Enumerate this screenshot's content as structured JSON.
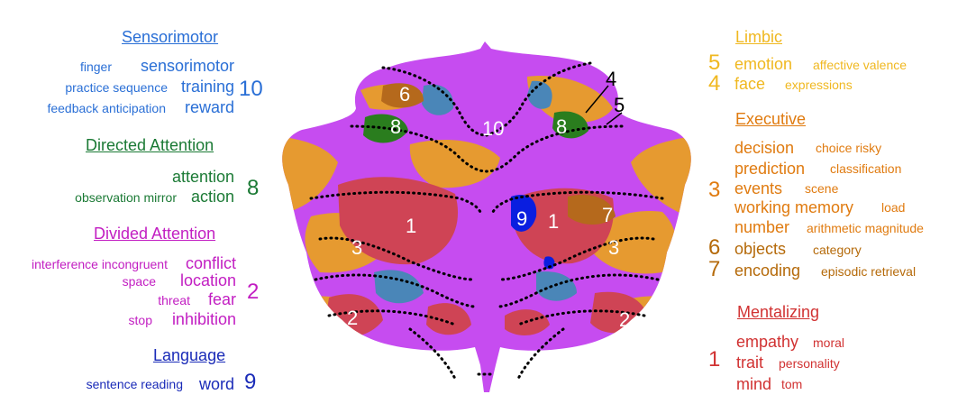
{
  "colors": {
    "sensorimotor": "#2a6fd6",
    "directed": "#1b7a35",
    "divided": "#c21ec2",
    "language": "#1a2bb8",
    "limbic": "#f0b820",
    "executive": "#e07b10",
    "executive_dark": "#b56a0a",
    "mentalizing": "#d13232",
    "map_purple": "#c64cf0",
    "map_orange": "#e69a30",
    "map_red": "#cf4455",
    "map_steel": "#4a86b8",
    "map_green": "#2a7d1e",
    "map_blue": "#0a1ee0",
    "map_brown": "#b5691c"
  },
  "left": {
    "sensorimotor": {
      "heading": "Sensorimotor",
      "number": "10",
      "rows": [
        {
          "small": "finger",
          "big": "sensorimotor"
        },
        {
          "small": "practice sequence",
          "big": "training"
        },
        {
          "small": "feedback anticipation",
          "big": "reward"
        }
      ]
    },
    "directed": {
      "heading": "Directed Attention",
      "number": "8",
      "rows": [
        {
          "small": "",
          "big": "attention"
        },
        {
          "small": "observation mirror",
          "big": "action"
        }
      ]
    },
    "divided": {
      "heading": "Divided Attention",
      "number": "2",
      "rows": [
        {
          "small": "interference incongruent",
          "big": "conflict"
        },
        {
          "small": "space",
          "big": "location"
        },
        {
          "small": "threat",
          "big": "fear"
        },
        {
          "small": "stop",
          "big": "inhibition"
        }
      ]
    },
    "language": {
      "heading": "Language",
      "number": "9",
      "rows": [
        {
          "small": "sentence reading",
          "big": "word"
        }
      ]
    }
  },
  "right": {
    "limbic": {
      "heading": "Limbic",
      "rows": [
        {
          "num": "5",
          "big": "emotion",
          "small": "affective valence"
        },
        {
          "num": "4",
          "big": "face",
          "small": "expressions"
        }
      ]
    },
    "executive": {
      "heading": "Executive",
      "number": "3",
      "rows": [
        {
          "num": "",
          "big": "decision",
          "small": "choice risky"
        },
        {
          "num": "",
          "big": "prediction",
          "small": "classification"
        },
        {
          "num": "",
          "big": "events",
          "small": "scene"
        },
        {
          "num": "",
          "big": "working memory",
          "small": "load"
        },
        {
          "num": "",
          "big": "number",
          "small": "arithmetic magnitude"
        },
        {
          "num": "6",
          "big": "objects",
          "small": "category"
        },
        {
          "num": "7",
          "big": "encoding",
          "small": "episodic retrieval"
        }
      ]
    },
    "mentalizing": {
      "heading": "Mentalizing",
      "number": "1",
      "rows": [
        {
          "big": "empathy",
          "small": "moral"
        },
        {
          "big": "trait",
          "small": "personality"
        },
        {
          "big": "mind",
          "small": "tom"
        }
      ]
    }
  },
  "map_labels": {
    "r6": "6",
    "r8l": "8",
    "r10": "10",
    "r8r": "8",
    "r1l": "1",
    "r9": "9",
    "r1r": "1",
    "r7": "7",
    "r3l": "3",
    "r3r": "3",
    "r2l": "2",
    "r2r": "2",
    "p4": "4",
    "p5": "5"
  }
}
